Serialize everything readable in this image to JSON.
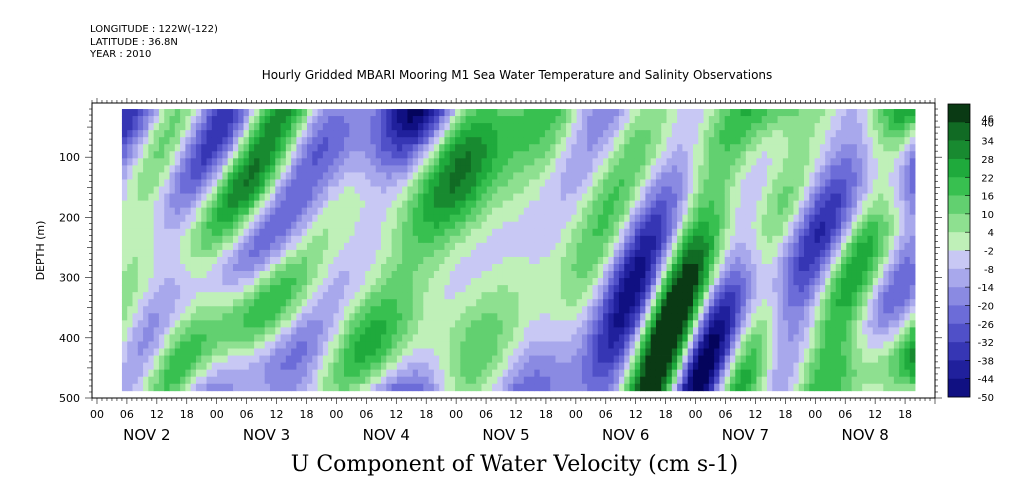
{
  "header": {
    "longitude": "LONGITUDE : 122W(-122)",
    "latitude": "LATITUDE : 36.8N",
    "year": "YEAR : 2010"
  },
  "chart_data": {
    "type": "heatmap",
    "title": "U Component of Water Velocity (cm s-1)",
    "subtitle": "Hourly Gridded MBARI Mooring M1 Sea Water Temperature and Salinity Observations",
    "ylabel": "DEPTH (m)",
    "xlabel": "",
    "ylim": [
      500,
      10
    ],
    "y_reversed": true,
    "y_ticks": [
      100,
      200,
      300,
      400,
      500
    ],
    "x_hour_ticks": [
      "00",
      "06",
      "12",
      "18",
      "00",
      "06",
      "12",
      "18",
      "00",
      "06",
      "12",
      "18",
      "00",
      "06",
      "12",
      "18",
      "00",
      "06",
      "12",
      "18",
      "00",
      "06",
      "12",
      "18",
      "00",
      "06",
      "12",
      "18"
    ],
    "x_day_labels": [
      "NOV  2",
      "NOV  3",
      "NOV  4",
      "NOV  5",
      "NOV  6",
      "NOV  7",
      "NOV  8"
    ],
    "data_extent": {
      "depth_min": 20,
      "depth_max": 488,
      "time_start_hour": 5,
      "time_end_hour_day7": 24
    },
    "colorbar": {
      "levels": [
        46,
        40,
        34,
        28,
        22,
        16,
        10,
        4,
        -2,
        -8,
        -14,
        -20,
        -26,
        -32,
        -38,
        -44,
        -50
      ],
      "colors": [
        "#0a3a14",
        "#116b24",
        "#188a30",
        "#1faa3c",
        "#38c050",
        "#62d070",
        "#8ee090",
        "#bff0b8",
        "#c8c8f4",
        "#a8a8ec",
        "#8a8ae2",
        "#6c6cd8",
        "#5050c8",
        "#3636b4",
        "#20209c",
        "#101082",
        "#04045c"
      ]
    },
    "field_range": [
      -40,
      40
    ]
  }
}
